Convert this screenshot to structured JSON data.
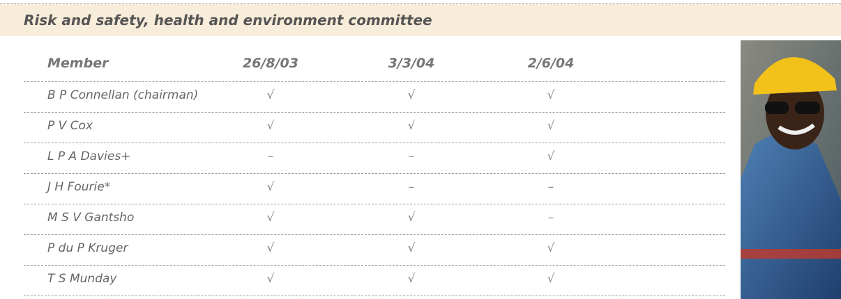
{
  "header": {
    "title": "Risk and safety, health and environment committee"
  },
  "table": {
    "columns": [
      "Member",
      "26/8/03",
      "3/3/04",
      "2/6/04"
    ],
    "rows": [
      [
        "B P Connellan (chairman)",
        "√",
        "√",
        "√"
      ],
      [
        "P V Cox",
        "√",
        "√",
        "√"
      ],
      [
        "L P A Davies+",
        "–",
        "–",
        "√"
      ],
      [
        "J H Fourie*",
        "√",
        "–",
        "–"
      ],
      [
        "M S V Gantsho",
        "√",
        "√",
        "–"
      ],
      [
        "P du P Kruger",
        "√",
        "√",
        "√"
      ],
      [
        "T S Munday",
        "√",
        "√",
        "√"
      ]
    ]
  }
}
